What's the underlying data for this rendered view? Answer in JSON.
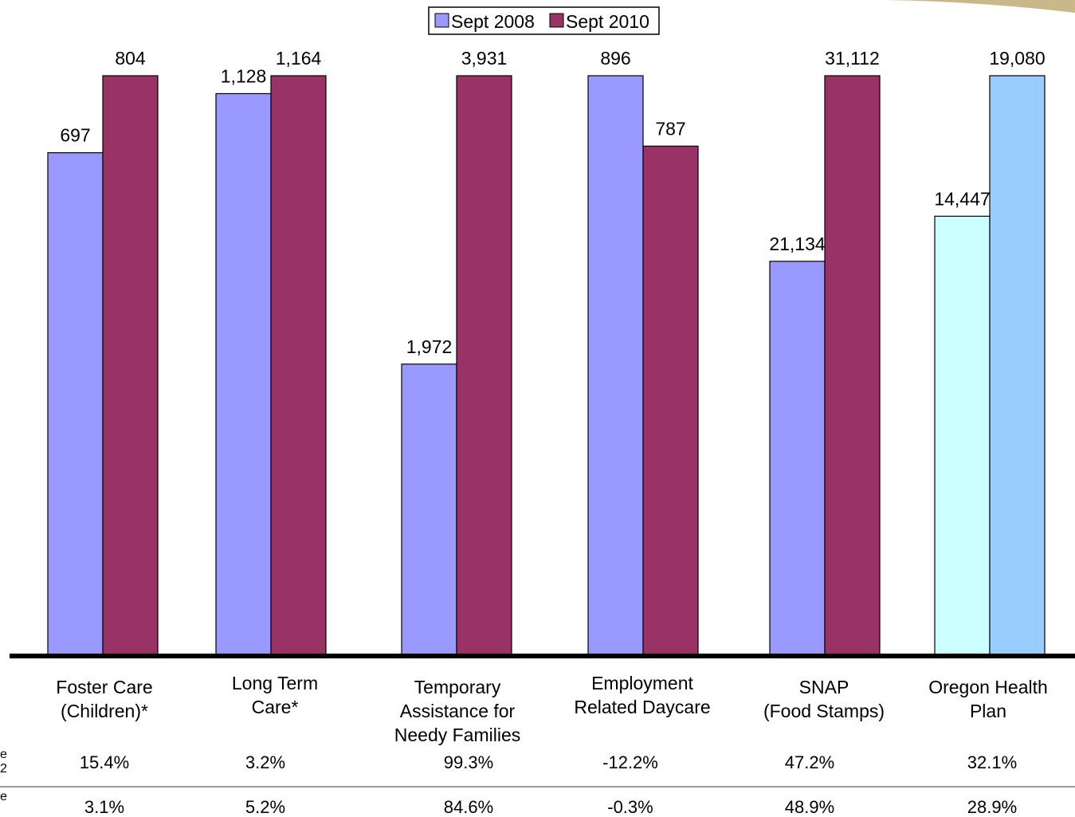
{
  "chart_data": {
    "type": "bar",
    "categories": [
      "Foster Care (Children)*",
      "Long Term Care*",
      "Temporary Assistance for Needy Families",
      "Employment Related Daycare",
      "SNAP (Food Stamps)",
      "Oregon Health Plan"
    ],
    "category_lines": [
      [
        "Foster Care",
        "(Children)*"
      ],
      [
        "Long Term",
        "Care*"
      ],
      [
        "Temporary",
        "Assistance for",
        "Needy Families"
      ],
      [
        "Employment",
        "Related Daycare"
      ],
      [
        "SNAP",
        "(Food Stamps)"
      ],
      [
        "Oregon Health",
        "Plan"
      ]
    ],
    "series": [
      {
        "name": "Sept 2008",
        "values": [
          697,
          1128,
          1972,
          896,
          21134,
          14447
        ],
        "labels": [
          "697",
          "1,128",
          "1,972",
          "896",
          "21,134",
          "14,447"
        ],
        "color": "#9999ff",
        "alt_color_last": "#ccffff"
      },
      {
        "name": "Sept 2010",
        "values": [
          804,
          1164,
          3931,
          787,
          31112,
          19080
        ],
        "labels": [
          "804",
          "1,164",
          "3,931",
          "787",
          "31,112",
          "19,080"
        ],
        "color": "#993366",
        "alt_color_last": "#99ccff"
      }
    ],
    "note": "Each category pair is scaled independently; tallest bar in each pair reaches the common top.",
    "legend_position": "top-center",
    "grid": false
  },
  "table_rows": [
    {
      "label_fragment": [
        "e",
        "2"
      ],
      "values": [
        "15.4%",
        "3.2%",
        "99.3%",
        "-12.2%",
        "47.2%",
        "32.1%"
      ]
    },
    {
      "label_fragment": [
        "e",
        ""
      ],
      "values": [
        "3.1%",
        "5.2%",
        "84.6%",
        "-0.3%",
        "48.9%",
        "28.9%"
      ]
    }
  ],
  "colors": {
    "decoration": "#c9b98a",
    "axis": "#000000",
    "table_rule": "#999999"
  }
}
